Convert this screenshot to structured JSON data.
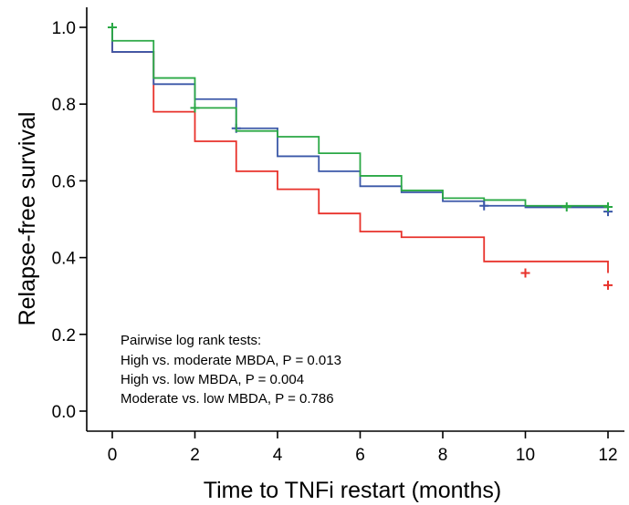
{
  "chart_data": {
    "type": "line",
    "step": true,
    "xlabel": "Time to TNFi restart (months)",
    "ylabel": "Relapse-free survival",
    "xlim": [
      0,
      12
    ],
    "ylim": [
      0,
      1.0
    ],
    "xticks": [
      0,
      2,
      4,
      6,
      8,
      10,
      12
    ],
    "xtick_labels": [
      "0",
      "2",
      "4",
      "6",
      "8",
      "10",
      "12"
    ],
    "yticks": [
      0.0,
      0.2,
      0.4,
      0.6,
      0.8,
      1.0
    ],
    "ytick_labels": [
      "0.0",
      "0.2",
      "0.4",
      "0.6",
      "0.8",
      "1.0"
    ],
    "grid": false,
    "annotations": [
      "Pairwise log rank tests:",
      "High vs. moderate MBDA, P = 0.013",
      "High vs. low MBDA, P = 0.004",
      "Moderate vs. low MBDA, P = 0.786"
    ],
    "series": [
      {
        "color": "#e8312a",
        "steps": [
          [
            0,
            1.0
          ],
          [
            0,
            0.936
          ],
          [
            1,
            0.78
          ],
          [
            2,
            0.703
          ],
          [
            3,
            0.625
          ],
          [
            4,
            0.578
          ],
          [
            5,
            0.515
          ],
          [
            6,
            0.468
          ],
          [
            7,
            0.453
          ],
          [
            9,
            0.39
          ],
          [
            12,
            0.36
          ]
        ],
        "censored": [
          [
            10,
            0.36
          ],
          [
            12,
            0.328
          ]
        ]
      },
      {
        "color": "#3a57a8",
        "steps": [
          [
            0,
            1.0
          ],
          [
            0,
            0.936
          ],
          [
            1,
            0.852
          ],
          [
            2,
            0.813
          ],
          [
            3,
            0.737
          ],
          [
            4,
            0.664
          ],
          [
            5,
            0.625
          ],
          [
            6,
            0.586
          ],
          [
            7,
            0.57
          ],
          [
            8,
            0.547
          ],
          [
            9,
            0.535
          ],
          [
            10,
            0.531
          ],
          [
            12,
            0.52
          ]
        ],
        "censored": [
          [
            3,
            0.737
          ],
          [
            9,
            0.535
          ],
          [
            12,
            0.52
          ]
        ]
      },
      {
        "color": "#2aa845",
        "steps": [
          [
            0,
            1.0
          ],
          [
            0,
            0.965
          ],
          [
            1,
            0.868
          ],
          [
            2,
            0.79
          ],
          [
            3,
            0.73
          ],
          [
            4,
            0.715
          ],
          [
            5,
            0.672
          ],
          [
            6,
            0.613
          ],
          [
            7,
            0.575
          ],
          [
            8,
            0.555
          ],
          [
            9,
            0.55
          ],
          [
            10,
            0.535
          ],
          [
            12,
            0.53
          ]
        ],
        "censored": [
          [
            0,
            1.0
          ],
          [
            2,
            0.79
          ],
          [
            11,
            0.532
          ],
          [
            12,
            0.532
          ]
        ]
      }
    ]
  }
}
